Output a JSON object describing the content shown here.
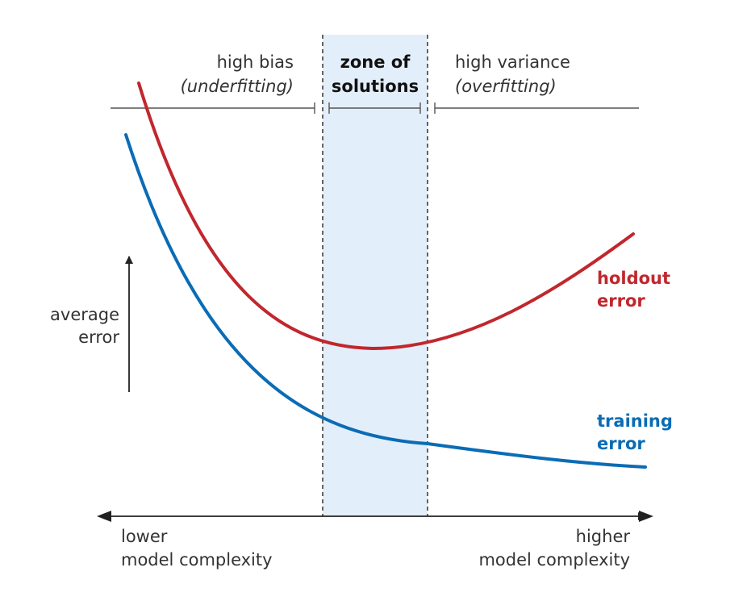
{
  "colors": {
    "holdout": "#c1272d",
    "training": "#0a6cb5",
    "zone_fill": "#e3eefb",
    "guide": "#555555"
  },
  "regions": {
    "left": {
      "line1": "high bias",
      "line2": "(underfitting)"
    },
    "center": {
      "line1": "zone of",
      "line2": "solutions"
    },
    "right": {
      "line1": "high variance",
      "line2": "(overfitting)"
    }
  },
  "y_axis": {
    "line1": "average",
    "line2": "error"
  },
  "x_axis": {
    "left": {
      "line1": "lower",
      "line2": "model complexity"
    },
    "right": {
      "line1": "higher",
      "line2": "model complexity"
    }
  },
  "curves": {
    "holdout": {
      "line1": "holdout",
      "line2": "error"
    },
    "training": {
      "line1": "training",
      "line2": "error"
    }
  }
}
